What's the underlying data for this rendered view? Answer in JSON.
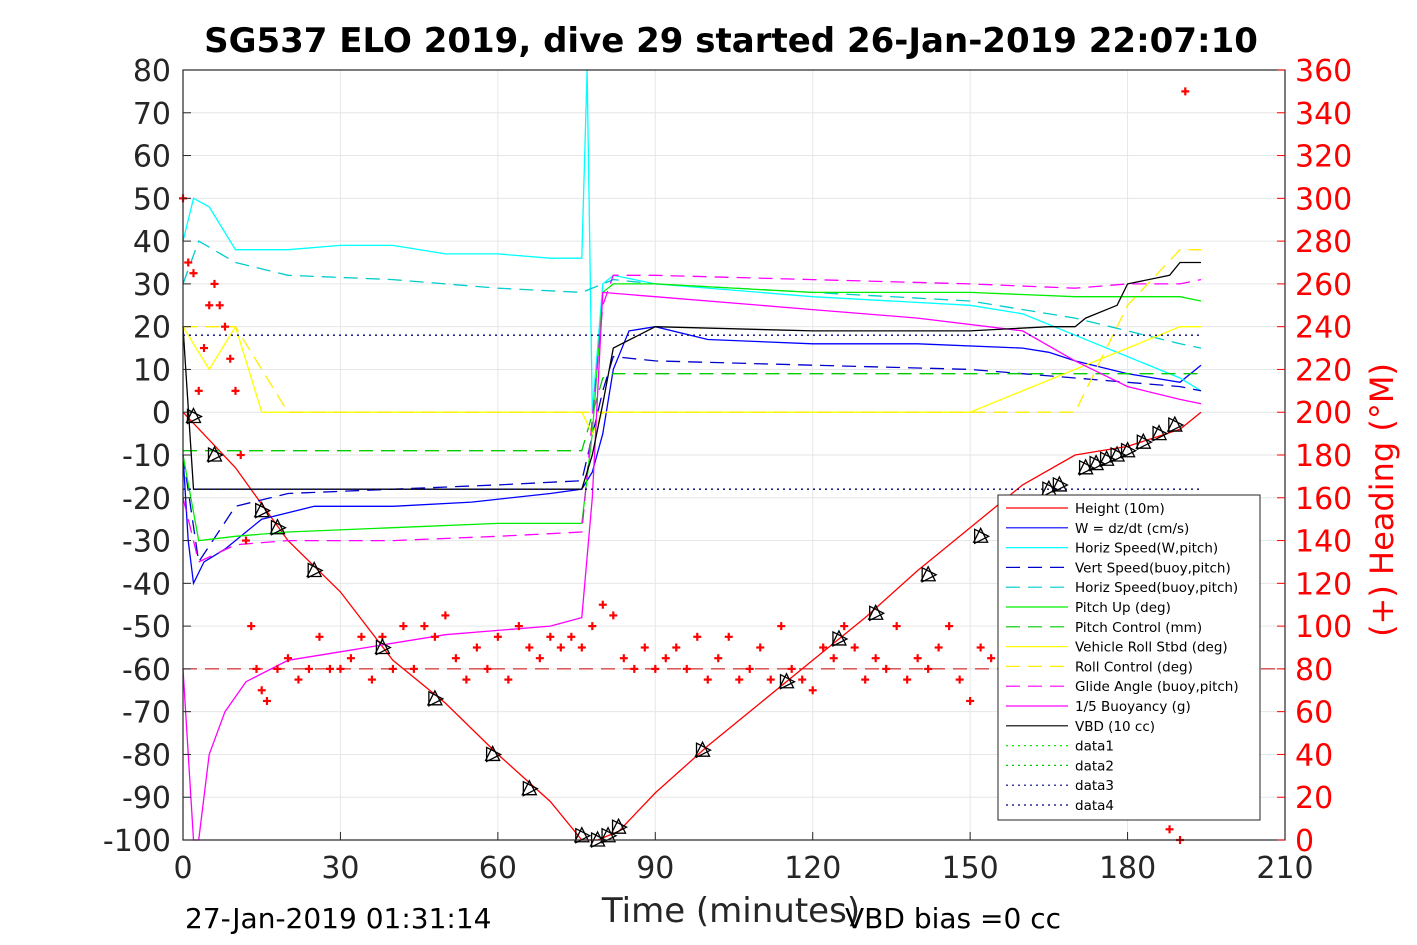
{
  "chart_data": {
    "type": "line",
    "title": "SG537 ELO 2019, dive 29 started 26-Jan-2019 22:07:10",
    "xlabel": "Time (minutes)",
    "ylabel_right": "(+) Heading (°M)",
    "footer_left": "27-Jan-2019 01:31:14",
    "footer_right": "VBD bias =0 cc",
    "xlim": [
      0,
      210
    ],
    "ylim": [
      -100,
      80
    ],
    "ylim_right": [
      0,
      360
    ],
    "x_ticks": [
      0,
      30,
      60,
      90,
      120,
      150,
      180,
      210
    ],
    "y_ticks": [
      80,
      70,
      60,
      50,
      40,
      30,
      20,
      10,
      0,
      -10,
      -20,
      -30,
      -40,
      -50,
      -60,
      -70,
      -80,
      -90,
      -100
    ],
    "y_ticks_right": [
      360,
      340,
      320,
      300,
      280,
      260,
      240,
      220,
      200,
      180,
      160,
      140,
      120,
      100,
      80,
      60,
      40,
      20,
      0
    ],
    "grid": true,
    "legend_position": "bottom-right",
    "series": [
      {
        "name": "Height (10m)",
        "color": "#ff0000",
        "style": "solid",
        "x": [
          0,
          10,
          20,
          30,
          40,
          50,
          60,
          70,
          76,
          79,
          83,
          90,
          100,
          110,
          120,
          130,
          140,
          150,
          160,
          170,
          180,
          190,
          194
        ],
        "y": [
          0,
          -13,
          -30,
          -42,
          -58,
          -68,
          -80,
          -91,
          -100,
          -100,
          -98,
          -89,
          -78,
          -68,
          -58,
          -48,
          -37,
          -27,
          -17,
          -10,
          -8,
          -4,
          0
        ]
      },
      {
        "name": "W = dz/dt (cm/s)",
        "color": "#0000ff",
        "style": "solid",
        "x": [
          0,
          1,
          2,
          4,
          8,
          15,
          25,
          40,
          55,
          70,
          76,
          78,
          80,
          82,
          85,
          90,
          100,
          120,
          140,
          160,
          165,
          170,
          180,
          190,
          194
        ],
        "y": [
          -10,
          -30,
          -40,
          -35,
          -32,
          -25,
          -22,
          -22,
          -21,
          -19,
          -18,
          -14,
          -5,
          10,
          19,
          20,
          17,
          16,
          16,
          15,
          14,
          12,
          9,
          7,
          11
        ]
      },
      {
        "name": "Horiz Speed(W,pitch)",
        "color": "#00ffff",
        "style": "solid",
        "x": [
          0,
          2,
          5,
          10,
          20,
          30,
          40,
          50,
          60,
          70,
          76,
          77,
          78,
          80,
          82,
          90,
          120,
          150,
          160,
          170,
          180,
          190,
          194
        ],
        "y": [
          40,
          50,
          48,
          38,
          38,
          39,
          39,
          37,
          37,
          36,
          36,
          80,
          0,
          30,
          32,
          30,
          27,
          25,
          23,
          18,
          13,
          8,
          5
        ]
      },
      {
        "name": "Vert Speed(buoy,pitch)",
        "color": "#0000cc",
        "style": "dashed",
        "x": [
          0,
          3,
          10,
          20,
          40,
          60,
          76,
          80,
          82,
          90,
          120,
          150,
          170,
          180,
          190,
          194
        ],
        "y": [
          -10,
          -35,
          -22,
          -19,
          -18,
          -17,
          -16,
          5,
          13,
          12,
          11,
          10,
          8,
          7,
          6,
          5
        ]
      },
      {
        "name": "Horiz Speed(buoy,pitch)",
        "color": "#00cccc",
        "style": "dashed",
        "x": [
          0,
          3,
          10,
          20,
          40,
          60,
          76,
          80,
          82,
          90,
          120,
          150,
          170,
          180,
          190,
          194
        ],
        "y": [
          30,
          40,
          35,
          32,
          31,
          29,
          28,
          30,
          31,
          30,
          28,
          26,
          22,
          19,
          16,
          15
        ]
      },
      {
        "name": "Pitch Up (deg)",
        "color": "#00ee00",
        "style": "solid",
        "x": [
          0,
          3,
          10,
          20,
          40,
          60,
          76,
          78,
          80,
          82,
          90,
          120,
          150,
          170,
          180,
          190,
          194
        ],
        "y": [
          -10,
          -30,
          -29,
          -28,
          -27,
          -26,
          -26,
          -5,
          28,
          30,
          30,
          28,
          28,
          27,
          27,
          27,
          26
        ]
      },
      {
        "name": "Pitch Control (mm)",
        "color": "#00cc00",
        "style": "dashed",
        "x": [
          0,
          2,
          20,
          76,
          80,
          82,
          194
        ],
        "y": [
          -9,
          -9,
          -9,
          -9,
          8,
          9,
          9
        ]
      },
      {
        "name": "Vehicle Roll Stbd (deg)",
        "color": "#ffff00",
        "style": "solid",
        "x": [
          0,
          5,
          10,
          15,
          30,
          45,
          60,
          76,
          78,
          80,
          90,
          120,
          150,
          170,
          180,
          190,
          194
        ],
        "y": [
          20,
          10,
          20,
          0,
          0,
          0,
          0,
          0,
          -5,
          0,
          0,
          0,
          0,
          10,
          15,
          20,
          20
        ]
      },
      {
        "name": "Roll Control (deg)",
        "color": "#ffee00",
        "style": "dashed",
        "x": [
          0,
          10,
          20,
          76,
          80,
          90,
          120,
          150,
          170,
          180,
          190,
          194
        ],
        "y": [
          20,
          20,
          0,
          0,
          0,
          0,
          0,
          0,
          0,
          25,
          38,
          38
        ]
      },
      {
        "name": "Glide Angle (buoy,pitch)",
        "color": "#ff00ff",
        "style": "dashed",
        "x": [
          0,
          3,
          10,
          20,
          40,
          60,
          76,
          80,
          82,
          90,
          120,
          150,
          170,
          180,
          190,
          194
        ],
        "y": [
          -20,
          -35,
          -31,
          -30,
          -30,
          -29,
          -28,
          25,
          32,
          32,
          31,
          30,
          29,
          30,
          30,
          31
        ]
      },
      {
        "name": "1/5 Buoyancy (g)",
        "color": "#ff00ff",
        "style": "solid",
        "x": [
          0,
          2,
          3,
          5,
          8,
          12,
          20,
          30,
          40,
          50,
          60,
          70,
          76,
          78,
          80,
          90,
          120,
          140,
          160,
          170,
          180,
          190,
          194
        ],
        "y": [
          -60,
          -100,
          -100,
          -80,
          -70,
          -63,
          -58,
          -56,
          -54,
          -52,
          -51,
          -50,
          -48,
          -20,
          28,
          27,
          24,
          22,
          19,
          12,
          6,
          3,
          2
        ]
      },
      {
        "name": "VBD (10 cc)",
        "color": "#000000",
        "style": "solid",
        "x": [
          0,
          2,
          3,
          76,
          78,
          80,
          82,
          90,
          120,
          150,
          165,
          170,
          172,
          178,
          180,
          188,
          190,
          194
        ],
        "y": [
          20,
          -18,
          -18,
          -18,
          -10,
          2,
          15,
          20,
          19,
          19,
          20,
          20,
          22,
          25,
          30,
          32,
          35,
          35
        ]
      },
      {
        "name": "data1",
        "color": "#00ee00",
        "style": "dotted",
        "x": [],
        "y": []
      },
      {
        "name": "data2",
        "color": "#00cc00",
        "style": "dotted",
        "x": [],
        "y": []
      },
      {
        "name": "data3",
        "color": "#000080",
        "style": "dotted",
        "x": [
          0,
          194
        ],
        "y": [
          18,
          18
        ]
      },
      {
        "name": "data4",
        "color": "#000080",
        "style": "dotted",
        "x": [
          0,
          194
        ],
        "y": [
          -18,
          -18
        ]
      }
    ],
    "reference_lines": [
      {
        "color": "#cc0000",
        "style": "dashed",
        "y": -60
      }
    ],
    "heading_series": {
      "color": "#ff0000",
      "marker": "+",
      "axis": "right",
      "x": [
        0,
        1,
        2,
        3,
        4,
        5,
        6,
        7,
        8,
        9,
        10,
        11,
        12,
        13,
        14,
        15,
        16,
        18,
        20,
        22,
        24,
        26,
        28,
        30,
        32,
        34,
        36,
        38,
        40,
        42,
        44,
        46,
        48,
        50,
        52,
        54,
        56,
        58,
        60,
        62,
        64,
        66,
        68,
        70,
        72,
        74,
        76,
        78,
        80,
        82,
        84,
        86,
        88,
        90,
        92,
        94,
        96,
        98,
        100,
        102,
        104,
        106,
        108,
        110,
        112,
        114,
        116,
        118,
        120,
        122,
        124,
        126,
        128,
        130,
        132,
        134,
        136,
        138,
        140,
        142,
        144,
        146,
        148,
        150,
        152,
        154,
        156,
        158,
        160,
        162,
        164,
        166,
        168,
        170,
        172,
        174,
        176,
        178,
        180,
        182,
        184,
        186,
        188,
        190,
        191
      ],
      "y": [
        300,
        270,
        265,
        210,
        230,
        250,
        260,
        250,
        240,
        225,
        210,
        180,
        140,
        100,
        80,
        70,
        65,
        80,
        85,
        75,
        80,
        95,
        80,
        80,
        85,
        95,
        75,
        95,
        80,
        100,
        80,
        100,
        95,
        105,
        85,
        75,
        90,
        80,
        95,
        75,
        100,
        90,
        85,
        95,
        90,
        95,
        90,
        100,
        110,
        105,
        85,
        80,
        90,
        80,
        85,
        90,
        80,
        95,
        75,
        85,
        95,
        75,
        80,
        90,
        75,
        100,
        80,
        75,
        70,
        90,
        85,
        100,
        90,
        75,
        85,
        80,
        100,
        75,
        85,
        80,
        90,
        100,
        75,
        65,
        90,
        85,
        80,
        100,
        90,
        85,
        100,
        90,
        110,
        90,
        95,
        110,
        100,
        90,
        80,
        85,
        95,
        90,
        5,
        0,
        350
      ]
    },
    "triangle_markers": {
      "color": "#000000",
      "x": [
        2,
        6,
        15,
        18,
        25,
        38,
        48,
        59,
        66,
        76,
        79,
        81,
        83,
        99,
        115,
        125,
        132,
        142,
        152,
        157,
        165,
        167,
        172,
        174,
        176,
        178,
        180,
        183,
        186,
        189
      ],
      "y": [
        -1,
        -10,
        -23,
        -27,
        -37,
        -55,
        -67,
        -80,
        -88,
        -99,
        -100,
        -99,
        -97,
        -79,
        -63,
        -53,
        -47,
        -38,
        -29,
        -26,
        -18,
        -17,
        -13,
        -12,
        -11,
        -10,
        -9,
        -7,
        -5,
        -3
      ]
    }
  }
}
